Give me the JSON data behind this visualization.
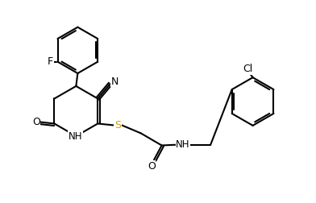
{
  "bg_color": "#ffffff",
  "line_color": "#000000",
  "S_color": "#c8a000",
  "figsize": [
    3.92,
    2.52
  ],
  "dpi": 100,
  "xlim": [
    0,
    9.8
  ],
  "ylim": [
    0,
    6.3
  ]
}
